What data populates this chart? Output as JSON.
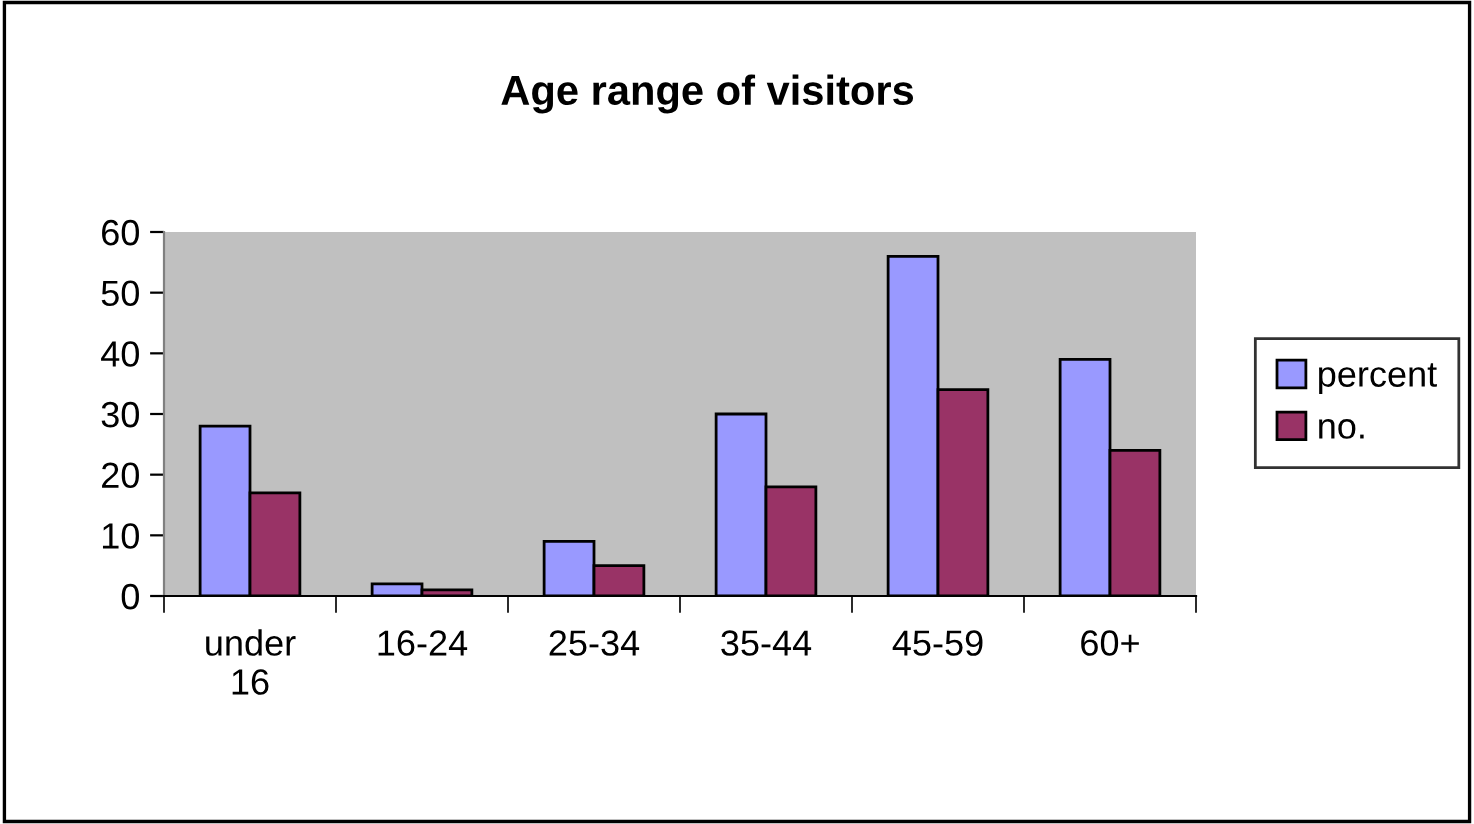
{
  "chart_data": {
    "type": "bar",
    "title": "Age range of visitors",
    "categories": [
      "under\n16",
      "16-24",
      "25-34",
      "35-44",
      "45-59",
      "60+"
    ],
    "series": [
      {
        "name": "percent",
        "color": "#9999ff",
        "values": [
          28,
          2,
          9,
          30,
          56,
          39
        ]
      },
      {
        "name": "no.",
        "color": "#993366",
        "values": [
          17,
          1,
          5,
          18,
          34,
          24
        ]
      }
    ],
    "ylim": [
      0,
      60
    ],
    "yticks": [
      0,
      10,
      20,
      30,
      40,
      50,
      60
    ],
    "grid": false,
    "legend": "right"
  }
}
